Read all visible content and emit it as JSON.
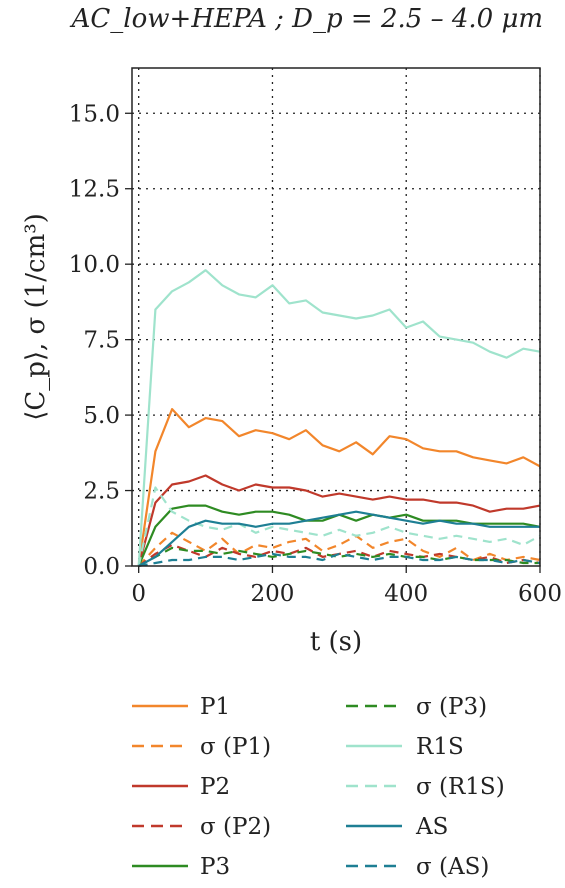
{
  "chart_data": {
    "type": "line",
    "title": "AC_low+HEPA ; D_p = 2.5 – 4.0 μm",
    "xlabel": "t (s)",
    "ylabel": "⟨C_p⟩, σ (1/cm³)",
    "xlim": [
      -10,
      600
    ],
    "ylim": [
      0,
      16.5
    ],
    "xticks": [
      "0",
      "200",
      "400",
      "600"
    ],
    "yticks": [
      "0.0",
      "2.5",
      "5.0",
      "7.5",
      "10.0",
      "12.5",
      "15.0"
    ],
    "grid": "dotted-black",
    "legend_position": "below-plot",
    "x": [
      0,
      25,
      50,
      75,
      100,
      125,
      150,
      175,
      200,
      225,
      250,
      275,
      300,
      325,
      350,
      375,
      400,
      425,
      450,
      475,
      500,
      525,
      550,
      575,
      600
    ],
    "series": [
      {
        "name": "P1",
        "color": "#f2862b",
        "dash": "solid",
        "values": [
          0.0,
          3.8,
          5.2,
          4.6,
          4.9,
          4.8,
          4.3,
          4.5,
          4.4,
          4.2,
          4.5,
          4.0,
          3.8,
          4.1,
          3.7,
          4.3,
          4.2,
          3.9,
          3.8,
          3.8,
          3.6,
          3.5,
          3.4,
          3.6,
          3.3
        ]
      },
      {
        "name": "σ (P1)",
        "color": "#f2862b",
        "dash": "dashed",
        "values": [
          0.0,
          0.6,
          1.1,
          0.8,
          0.5,
          0.9,
          0.4,
          0.7,
          0.6,
          0.8,
          0.9,
          0.5,
          0.7,
          1.0,
          0.6,
          0.8,
          0.9,
          0.5,
          0.3,
          0.6,
          0.2,
          0.4,
          0.2,
          0.3,
          0.2
        ]
      },
      {
        "name": "P2",
        "color": "#c0392b",
        "dash": "solid",
        "values": [
          0.0,
          2.1,
          2.7,
          2.8,
          3.0,
          2.7,
          2.5,
          2.7,
          2.6,
          2.6,
          2.5,
          2.3,
          2.4,
          2.3,
          2.2,
          2.3,
          2.2,
          2.2,
          2.1,
          2.1,
          2.0,
          1.8,
          1.9,
          1.9,
          2.0
        ]
      },
      {
        "name": "σ (P2)",
        "color": "#c0392b",
        "dash": "dashed",
        "values": [
          0.0,
          0.4,
          0.7,
          0.5,
          0.3,
          0.6,
          0.4,
          0.3,
          0.5,
          0.4,
          0.6,
          0.3,
          0.4,
          0.5,
          0.3,
          0.5,
          0.4,
          0.3,
          0.4,
          0.3,
          0.2,
          0.3,
          0.1,
          0.2,
          0.1
        ]
      },
      {
        "name": "P3",
        "color": "#2e8b22",
        "dash": "solid",
        "values": [
          0.0,
          1.3,
          1.9,
          2.0,
          2.0,
          1.8,
          1.7,
          1.8,
          1.8,
          1.7,
          1.5,
          1.5,
          1.7,
          1.5,
          1.7,
          1.6,
          1.7,
          1.5,
          1.5,
          1.5,
          1.4,
          1.4,
          1.4,
          1.4,
          1.3
        ]
      },
      {
        "name": "σ (P3)",
        "color": "#2e8b22",
        "dash": "dashed",
        "values": [
          0.0,
          0.3,
          0.6,
          0.5,
          0.5,
          0.4,
          0.5,
          0.4,
          0.3,
          0.4,
          0.5,
          0.4,
          0.3,
          0.4,
          0.3,
          0.4,
          0.3,
          0.3,
          0.2,
          0.3,
          0.2,
          0.2,
          0.2,
          0.1,
          0.1
        ]
      },
      {
        "name": "R1S",
        "color": "#9fe3cc",
        "dash": "solid",
        "values": [
          0.0,
          8.5,
          9.1,
          9.4,
          9.8,
          9.3,
          9.0,
          8.9,
          9.3,
          8.7,
          8.8,
          8.4,
          8.3,
          8.2,
          8.3,
          8.5,
          7.9,
          8.1,
          7.6,
          7.5,
          7.4,
          7.1,
          6.9,
          7.2,
          7.1
        ]
      },
      {
        "name": "σ (R1S)",
        "color": "#9fe3cc",
        "dash": "dashed",
        "values": [
          0.0,
          2.6,
          1.8,
          1.5,
          1.3,
          1.2,
          1.4,
          1.1,
          1.3,
          1.2,
          1.1,
          1.0,
          1.2,
          1.0,
          1.1,
          1.3,
          1.1,
          1.0,
          0.9,
          1.0,
          0.9,
          0.8,
          0.9,
          0.7,
          1.0
        ]
      },
      {
        "name": "AS",
        "color": "#1e7f94",
        "dash": "solid",
        "values": [
          0.0,
          0.3,
          0.8,
          1.3,
          1.5,
          1.4,
          1.4,
          1.3,
          1.4,
          1.4,
          1.5,
          1.6,
          1.7,
          1.8,
          1.7,
          1.6,
          1.5,
          1.4,
          1.5,
          1.4,
          1.4,
          1.3,
          1.3,
          1.3,
          1.3
        ]
      },
      {
        "name": "σ (AS)",
        "color": "#1e7f94",
        "dash": "dashed",
        "values": [
          0.0,
          0.1,
          0.2,
          0.2,
          0.3,
          0.3,
          0.2,
          0.3,
          0.4,
          0.3,
          0.3,
          0.2,
          0.4,
          0.3,
          0.2,
          0.3,
          0.3,
          0.2,
          0.2,
          0.3,
          0.2,
          0.2,
          0.1,
          0.2,
          0.1
        ]
      }
    ]
  }
}
